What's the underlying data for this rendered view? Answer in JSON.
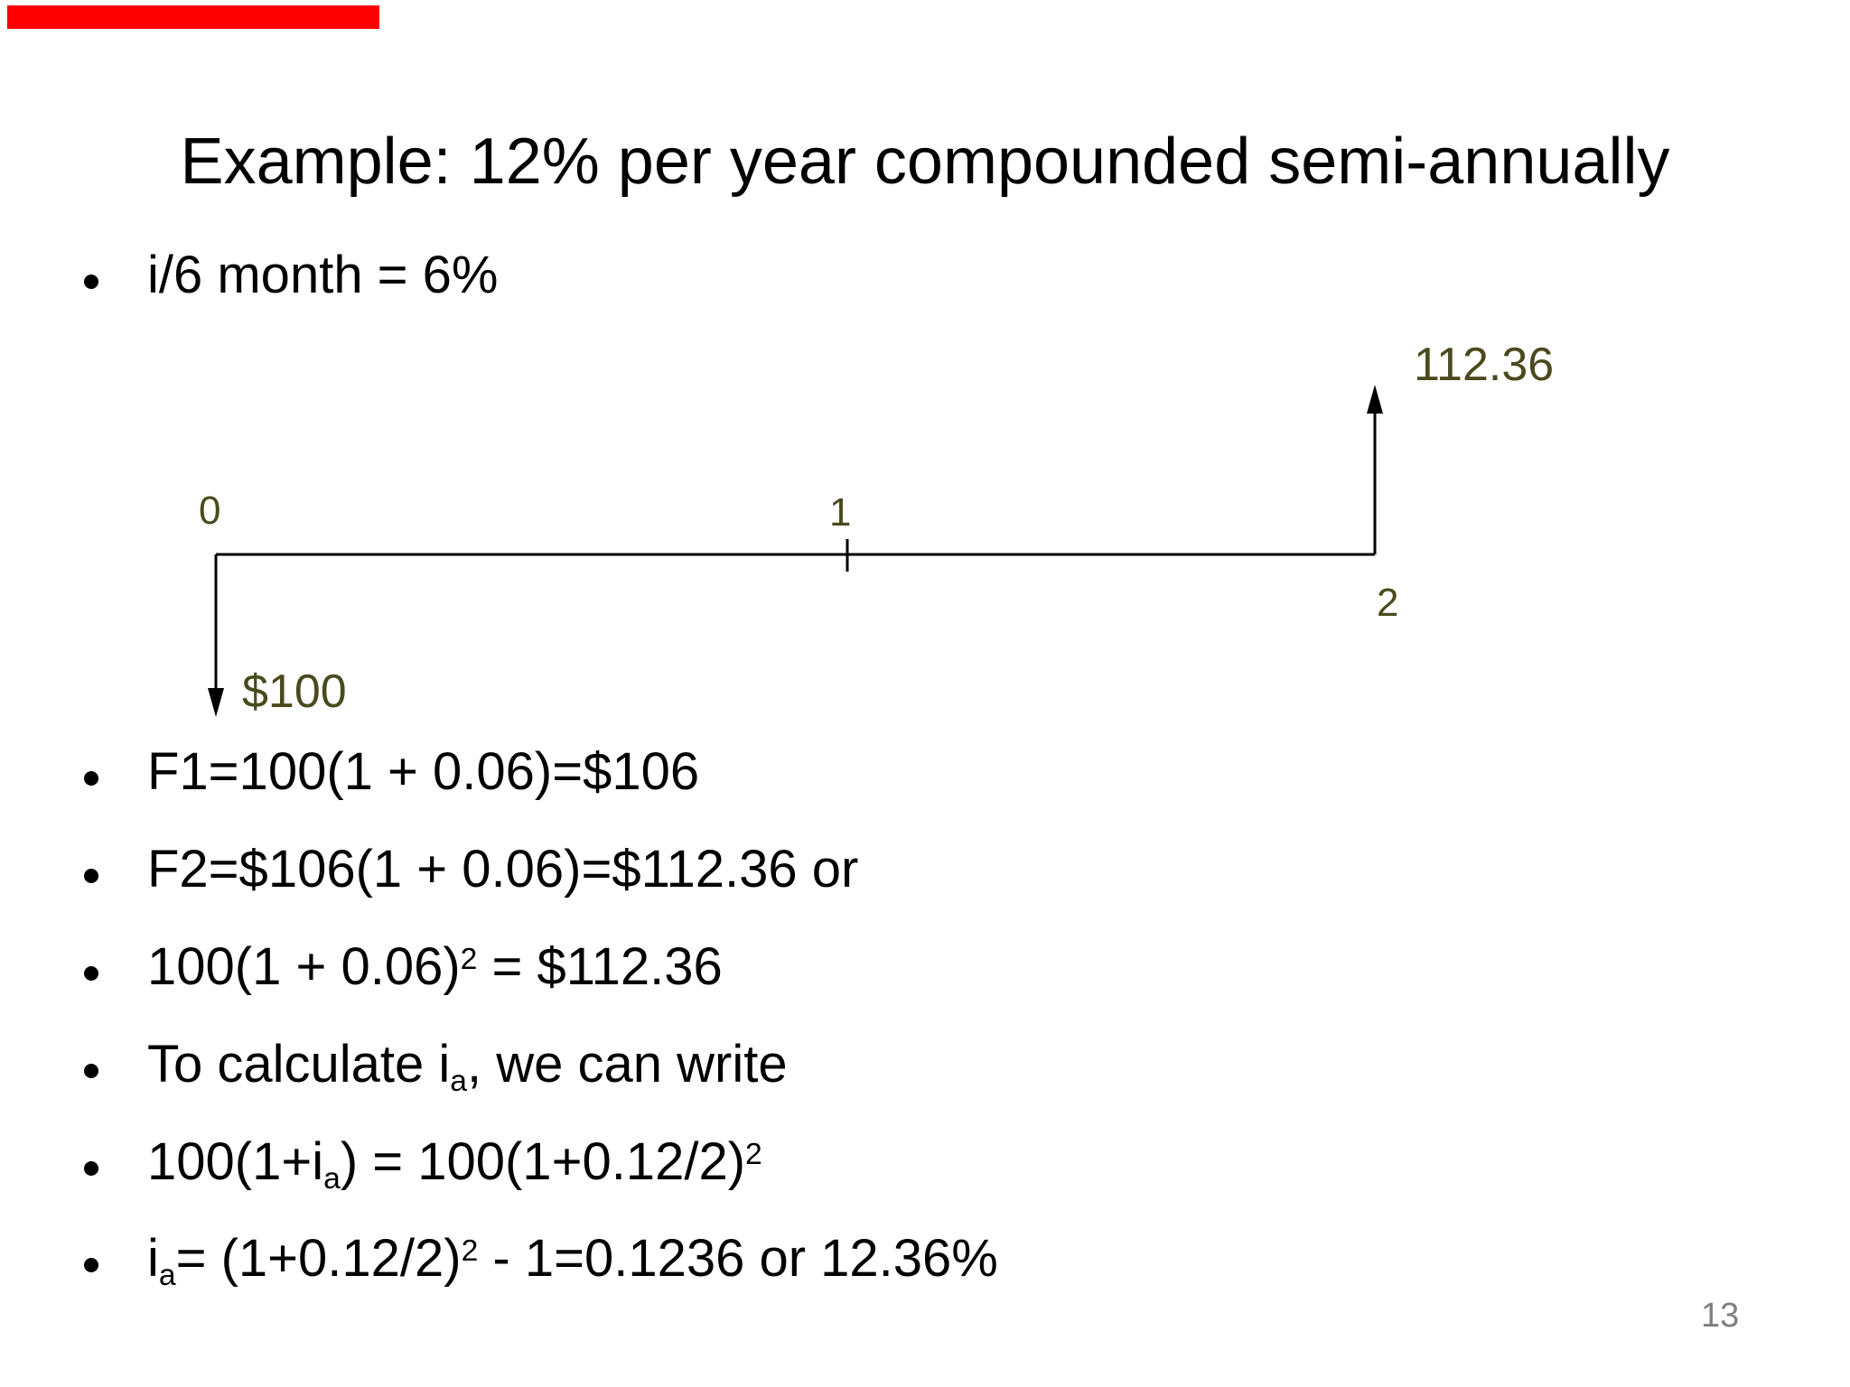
{
  "slide": {
    "title": "Example: 12% per year compounded semi-annually",
    "page_number": "13"
  },
  "colors": {
    "accent_bar_red": "#ff0000",
    "diagram_olive": "#4a4a1e",
    "page_number_gray": "#7f7f7f",
    "text_black": "#000000"
  },
  "intro_bullet": {
    "segments": [
      {
        "t": "i/6 month = 6%"
      }
    ]
  },
  "diagram": {
    "future_value_label": "112.36",
    "present_value_label": "$100",
    "period_0_label": "0",
    "period_1_label": "1",
    "period_2_label": "2"
  },
  "bullets": [
    {
      "segments": [
        {
          "t": "F1=100(1 + 0.06)=$106"
        }
      ]
    },
    {
      "segments": [
        {
          "t": "F2=$106(1 + 0.06)=$112.36 or"
        }
      ]
    },
    {
      "segments": [
        {
          "t": "100(1 + 0.06)"
        },
        {
          "sup": "2"
        },
        {
          "t": " = $112.36"
        }
      ]
    },
    {
      "segments": [
        {
          "t": "To calculate i"
        },
        {
          "sub": "a"
        },
        {
          "t": ", we can write"
        }
      ]
    },
    {
      "segments": [
        {
          "t": "100(1+i"
        },
        {
          "sub": "a"
        },
        {
          "t": ") = 100(1+0.12/2)"
        },
        {
          "sup": "2"
        }
      ]
    },
    {
      "segments": [
        {
          "t": "i"
        },
        {
          "sub": "a"
        },
        {
          "t": "= (1+0.12/2)"
        },
        {
          "sup": "2"
        },
        {
          "t": " - 1=0.1236 or 12.36%"
        }
      ]
    }
  ]
}
